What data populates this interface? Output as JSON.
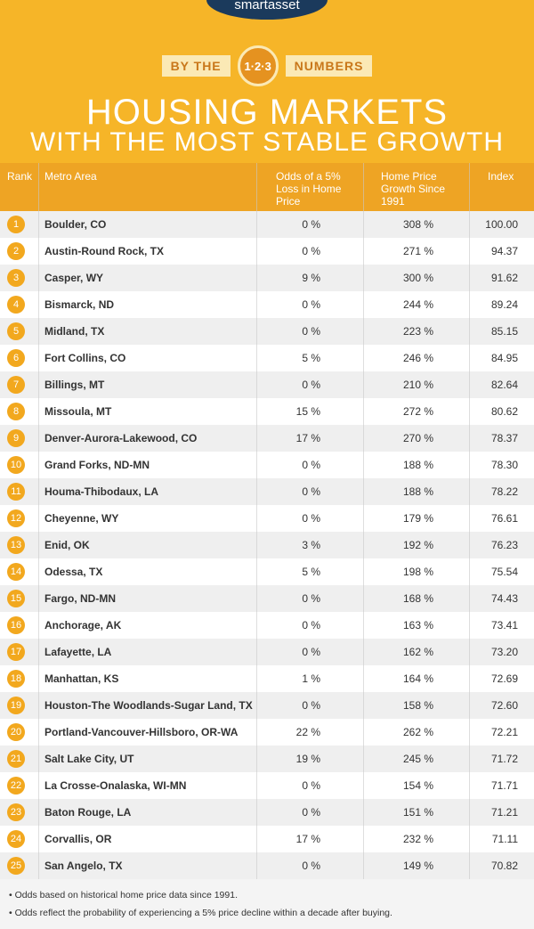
{
  "header": {
    "logo": "smartasset",
    "by_the": "BY THE",
    "badge": "1·2·3",
    "numbers": "NUMBERS",
    "title_line1": "HOUSING MARKETS",
    "title_line2": "WITH THE MOST STABLE GROWTH"
  },
  "table": {
    "columns": [
      "Rank",
      "Metro Area",
      "Odds of a 5% Loss in Home Price",
      "Home Price Growth Since 1991",
      "Index"
    ],
    "rows": [
      [
        "1",
        "Boulder, CO",
        "0 %",
        "308 %",
        "100.00"
      ],
      [
        "2",
        "Austin-Round Rock, TX",
        "0 %",
        "271 %",
        "94.37"
      ],
      [
        "3",
        "Casper, WY",
        "9 %",
        "300 %",
        "91.62"
      ],
      [
        "4",
        "Bismarck, ND",
        "0 %",
        "244 %",
        "89.24"
      ],
      [
        "5",
        "Midland, TX",
        "0 %",
        "223 %",
        "85.15"
      ],
      [
        "6",
        "Fort Collins, CO",
        "5 %",
        "246 %",
        "84.95"
      ],
      [
        "7",
        "Billings, MT",
        "0 %",
        "210 %",
        "82.64"
      ],
      [
        "8",
        "Missoula, MT",
        "15 %",
        "272 %",
        "80.62"
      ],
      [
        "9",
        "Denver-Aurora-Lakewood, CO",
        "17 %",
        "270 %",
        "78.37"
      ],
      [
        "10",
        "Grand Forks, ND-MN",
        "0 %",
        "188 %",
        "78.30"
      ],
      [
        "11",
        "Houma-Thibodaux, LA",
        "0 %",
        "188 %",
        "78.22"
      ],
      [
        "12",
        "Cheyenne, WY",
        "0 %",
        "179 %",
        "76.61"
      ],
      [
        "13",
        "Enid, OK",
        "3 %",
        "192 %",
        "76.23"
      ],
      [
        "14",
        "Odessa, TX",
        "5 %",
        "198 %",
        "75.54"
      ],
      [
        "15",
        "Fargo, ND-MN",
        "0 %",
        "168 %",
        "74.43"
      ],
      [
        "16",
        "Anchorage, AK",
        "0 %",
        "163 %",
        "73.41"
      ],
      [
        "17",
        "Lafayette, LA",
        "0 %",
        "162 %",
        "73.20"
      ],
      [
        "18",
        "Manhattan, KS",
        "1 %",
        "164 %",
        "72.69"
      ],
      [
        "19",
        "Houston-The Woodlands-Sugar Land, TX",
        "0 %",
        "158 %",
        "72.60"
      ],
      [
        "20",
        "Portland-Vancouver-Hillsboro, OR-WA",
        "22 %",
        "262 %",
        "72.21"
      ],
      [
        "21",
        "Salt Lake City, UT",
        "19 %",
        "245 %",
        "71.72"
      ],
      [
        "22",
        "La Crosse-Onalaska, WI-MN",
        "0 %",
        "154 %",
        "71.71"
      ],
      [
        "23",
        "Baton Rouge, LA",
        "0 %",
        "151 %",
        "71.21"
      ],
      [
        "24",
        "Corvallis, OR",
        "17 %",
        "232 %",
        "71.11"
      ],
      [
        "25",
        "San Angelo, TX",
        "0 %",
        "149 %",
        "70.82"
      ]
    ]
  },
  "footnotes": [
    "• Odds based on historical home price data since 1991.",
    "• Odds reflect the probability of experiencing a 5% price decline within a decade after buying."
  ]
}
